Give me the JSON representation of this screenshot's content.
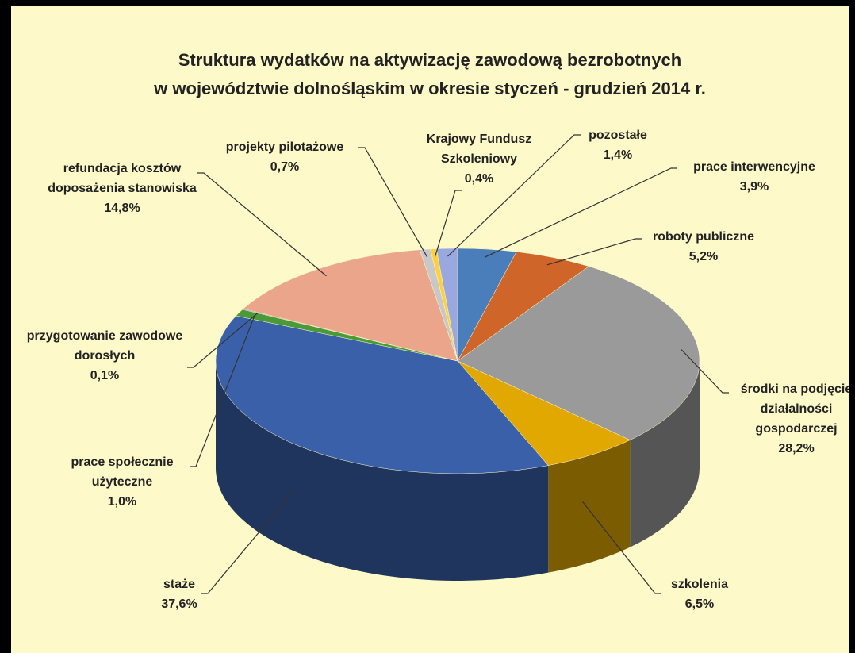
{
  "chart_data": {
    "type": "pie3d",
    "title": "Struktura wydatków na aktywizację zawodową bezrobotnych\nw województwie dolnośląskim  w okresie styczeń - grudzień 2014 r.",
    "categories": [
      "prace interwencyjne",
      "roboty publiczne",
      "środki na podjęcie działalności gospodarczej",
      "szkolenia",
      "staże",
      "prace społecznie użyteczne",
      "przygotowanie zawodowe dorosłych",
      "refundacja kosztów doposażenia stanowiska",
      "projekty pilotażowe",
      "Krajowy Fundusz Szkoleniowy",
      "pozostałe"
    ],
    "values": [
      3.9,
      5.2,
      28.2,
      6.5,
      37.6,
      1.0,
      0.1,
      14.8,
      0.7,
      0.4,
      1.4
    ],
    "value_labels": [
      "3,9%",
      "5,2%",
      "28,2%",
      "6,5%",
      "37,6%",
      "1,0%",
      "0,1%",
      "14,8%",
      "0,7%",
      "0,4%",
      "1,4%"
    ],
    "colors": [
      "#4a7ebb",
      "#d0652a",
      "#9a9a9a",
      "#e0a800",
      "#3a60aa",
      "#4a9a3a",
      "#7a5aa0",
      "#eba58a",
      "#c8c8c8",
      "#ffd040",
      "#9aa8e0"
    ]
  }
}
